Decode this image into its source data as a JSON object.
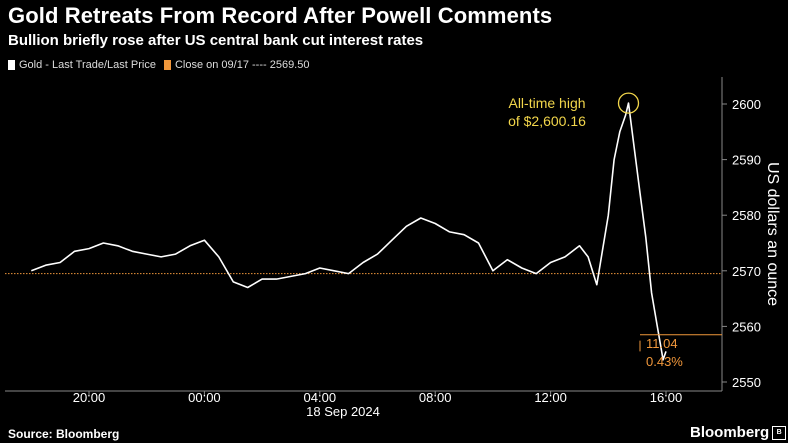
{
  "title": "Gold Retreats From Record After Powell Comments",
  "subtitle": "Bullion briefly rose after US central bank cut interest rates",
  "legend": {
    "gold_label": "Gold - Last Trade/Last Price",
    "close_label": "Close on 09/17 ---- 2569.50"
  },
  "colors": {
    "gold_line": "#ffffff",
    "close_line": "#f0973b",
    "annotation": "#f2d64b",
    "grid": "#666666"
  },
  "source": "Source: Bloomberg",
  "brand": "Bloomberg",
  "brand_icon": "b-logo-box-icon",
  "chart_data": {
    "type": "line",
    "title": "Gold Retreats From Record After Powell Comments",
    "subtitle": "Bullion briefly rose after US central bank cut interest rates",
    "ylabel": "US dollars an ounce",
    "xlabel": "18 Sep 2024",
    "ylim": [
      2548,
      2605
    ],
    "y_ticks": [
      2550,
      2560,
      2570,
      2580,
      2590,
      2600
    ],
    "x_ticks": [
      {
        "label": "20:00",
        "hour": 20
      },
      {
        "label": "00:00",
        "hour": 24
      },
      {
        "label": "04:00",
        "hour": 28
      },
      {
        "label": "08:00",
        "hour": 32
      },
      {
        "label": "12:00",
        "hour": 36
      },
      {
        "label": "16:00",
        "hour": 40
      }
    ],
    "x_axis_date_label": "18 Sep 2024",
    "grid": false,
    "legend_position": "top-left",
    "reference_line": {
      "name": "Close on 09/17",
      "value": 2569.5
    },
    "annotations": [
      {
        "text_line1": "All-time high",
        "text_line2": "of $2,600.16",
        "x_hour": 38.7,
        "y": 2600.16
      },
      {
        "change": "11.04",
        "change_pct": "0.43%"
      }
    ],
    "series": [
      {
        "name": "Gold - Last Trade/Last Price",
        "x": [
          18.0,
          18.5,
          19.0,
          19.5,
          20.0,
          20.5,
          21.0,
          21.5,
          22.0,
          22.5,
          23.0,
          23.5,
          24.0,
          24.5,
          25.0,
          25.5,
          26.0,
          26.5,
          27.0,
          27.5,
          28.0,
          28.5,
          29.0,
          29.5,
          30.0,
          30.5,
          31.0,
          31.5,
          32.0,
          32.5,
          33.0,
          33.5,
          34.0,
          34.5,
          35.0,
          35.5,
          36.0,
          36.5,
          37.0,
          37.3,
          37.6,
          38.0,
          38.2,
          38.4,
          38.6,
          38.7,
          38.9,
          39.1,
          39.3,
          39.5,
          39.7,
          39.9,
          40.0
        ],
        "y": [
          2570.0,
          2571.0,
          2571.5,
          2573.5,
          2574.0,
          2575.0,
          2574.5,
          2573.5,
          2573.0,
          2572.5,
          2573.0,
          2574.5,
          2575.5,
          2572.5,
          2568.0,
          2567.0,
          2568.5,
          2568.5,
          2569.0,
          2569.5,
          2570.5,
          2570.0,
          2569.5,
          2571.5,
          2573.0,
          2575.5,
          2578.0,
          2579.5,
          2578.5,
          2577.0,
          2576.5,
          2575.0,
          2570.0,
          2572.0,
          2570.5,
          2569.5,
          2571.5,
          2572.5,
          2574.5,
          2572.5,
          2567.5,
          2580.0,
          2590.0,
          2595.0,
          2598.0,
          2600.16,
          2592.0,
          2584.0,
          2576.0,
          2566.0,
          2560.0,
          2554.0,
          2555.5
        ]
      }
    ]
  }
}
